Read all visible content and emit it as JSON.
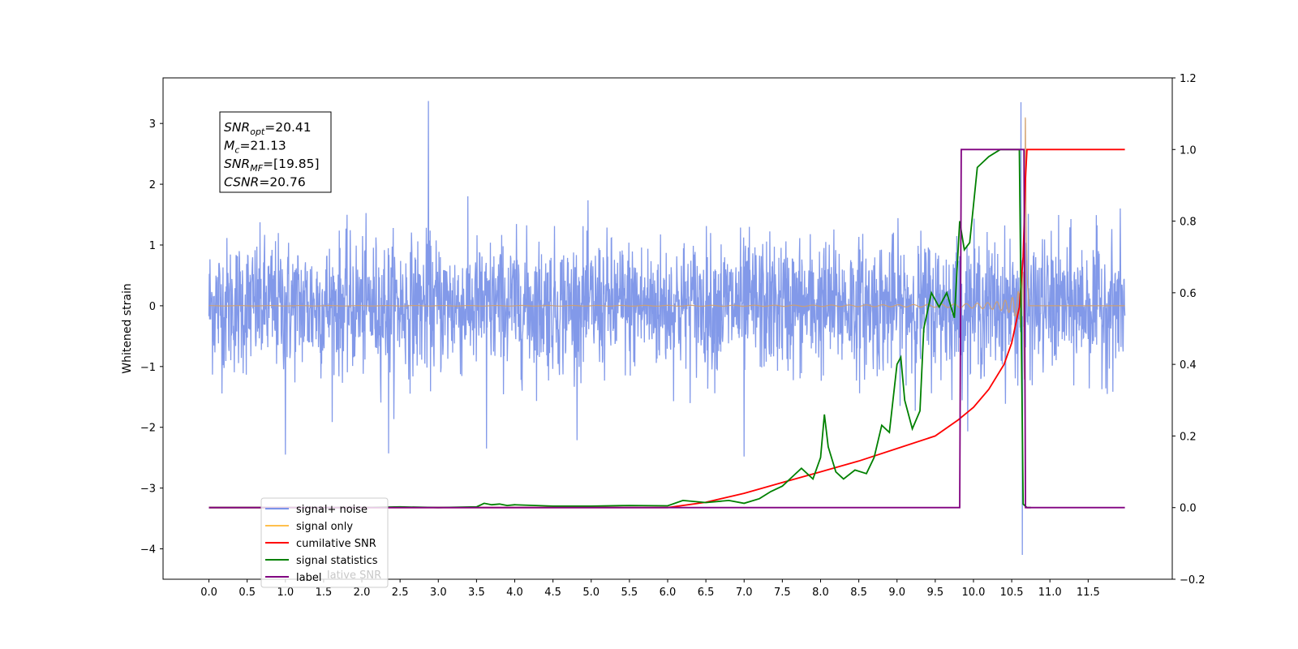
{
  "chart_data": {
    "type": "line",
    "ylabel": "Whitened strain",
    "x_range": [
      -0.6,
      12.6
    ],
    "ylim": [
      -4.5,
      3.75
    ],
    "y2lim": [
      -0.2,
      1.2
    ],
    "x_ticks": [
      "0.0",
      "0.5",
      "1.0",
      "1.5",
      "2.0",
      "2.5",
      "3.0",
      "3.5",
      "4.0",
      "4.5",
      "5.0",
      "5.5",
      "6.0",
      "6.5",
      "7.0",
      "7.5",
      "8.0",
      "8.5",
      "9.0",
      "9.5",
      "10.0",
      "10.5",
      "11.0",
      "11.5"
    ],
    "y_ticks": [
      "3",
      "2",
      "1",
      "0",
      "−1",
      "−2",
      "−3",
      "−4"
    ],
    "y2_ticks": [
      "1.2",
      "1.0",
      "0.8",
      "0.6",
      "0.4",
      "0.2",
      "0.0",
      "−0.2"
    ],
    "annotation": {
      "lines": [
        {
          "sym": "SNR",
          "sub": "opt",
          "val": "=20.41"
        },
        {
          "sym": "M",
          "sub": "c",
          "val": "=21.13"
        },
        {
          "sym": "SNR",
          "sub": "MF",
          "val": "=[19.85]"
        },
        {
          "sym": "CSNR",
          "sub": "",
          "val": "=20.76"
        }
      ]
    },
    "legend": {
      "position": "lower-left",
      "entries": [
        {
          "label": "signal+ noise",
          "color": "#7b93e8"
        },
        {
          "label": "signal only",
          "color": "#ffc04d"
        },
        {
          "label": "cumilative SNR",
          "color": "#ff0000"
        },
        {
          "label": "signal statistics",
          "color": "#008000"
        },
        {
          "label": "label",
          "color": "#800080"
        }
      ],
      "overlapped_text": "lative SNR"
    },
    "series": [
      {
        "name": "signal+ noise",
        "axis": "left",
        "color": "#7b93e8",
        "t_range": [
          0.0,
          11.98
        ],
        "envelope": 1.3,
        "notable_peaks": [
          [
            2.87,
            3.37
          ],
          [
            10.62,
            3.35
          ],
          [
            10.64,
            -4.1
          ],
          [
            1.0,
            -2.45
          ],
          [
            2.35,
            -2.43
          ],
          [
            7.0,
            -2.48
          ],
          [
            3.63,
            -2.35
          ]
        ]
      },
      {
        "name": "signal only",
        "axis": "left",
        "color": "#d2a06c",
        "t_range": [
          0.0,
          11.98
        ],
        "merger_time": 10.68,
        "peak_amplitude": 3.1,
        "visible_from": 5.8
      },
      {
        "name": "cumilative SNR",
        "axis": "right",
        "x": [
          0.0,
          6.0,
          6.5,
          7.0,
          7.5,
          8.0,
          8.5,
          9.0,
          9.5,
          9.8,
          10.0,
          10.2,
          10.4,
          10.5,
          10.6,
          10.65,
          10.68,
          10.7,
          11.98
        ],
        "y": [
          0.0,
          0.0,
          0.015,
          0.04,
          0.07,
          0.1,
          0.13,
          0.165,
          0.2,
          0.245,
          0.28,
          0.33,
          0.4,
          0.46,
          0.56,
          0.7,
          0.92,
          1.0,
          1.0
        ]
      },
      {
        "name": "signal statistics",
        "axis": "right",
        "x": [
          0.0,
          2.0,
          2.5,
          3.0,
          3.5,
          3.6,
          3.7,
          3.8,
          3.9,
          4.0,
          4.5,
          5.0,
          5.5,
          6.0,
          6.2,
          6.5,
          6.8,
          7.0,
          7.2,
          7.35,
          7.5,
          7.6,
          7.75,
          7.9,
          8.0,
          8.05,
          8.1,
          8.2,
          8.3,
          8.45,
          8.6,
          8.7,
          8.8,
          8.9,
          9.0,
          9.05,
          9.1,
          9.2,
          9.3,
          9.35,
          9.45,
          9.55,
          9.65,
          9.75,
          9.82,
          9.88,
          9.95,
          10.05,
          10.2,
          10.35,
          10.5,
          10.6,
          10.65,
          10.7,
          10.75
        ],
        "y": [
          0.0,
          0.0,
          0.002,
          0.0,
          0.002,
          0.012,
          0.008,
          0.01,
          0.006,
          0.008,
          0.004,
          0.004,
          0.006,
          0.005,
          0.02,
          0.014,
          0.02,
          0.012,
          0.025,
          0.045,
          0.06,
          0.08,
          0.11,
          0.08,
          0.14,
          0.26,
          0.17,
          0.1,
          0.08,
          0.105,
          0.095,
          0.14,
          0.23,
          0.21,
          0.4,
          0.42,
          0.3,
          0.22,
          0.27,
          0.5,
          0.6,
          0.56,
          0.6,
          0.53,
          0.8,
          0.72,
          0.74,
          0.95,
          0.98,
          1.0,
          1.0,
          1.0,
          0.01,
          0.0,
          0.0
        ]
      },
      {
        "name": "label",
        "axis": "right",
        "x": [
          0.0,
          9.82,
          9.84,
          10.66,
          10.68,
          11.98
        ],
        "y": [
          0.0,
          0.0,
          1.0,
          1.0,
          0.0,
          0.0
        ]
      }
    ]
  }
}
